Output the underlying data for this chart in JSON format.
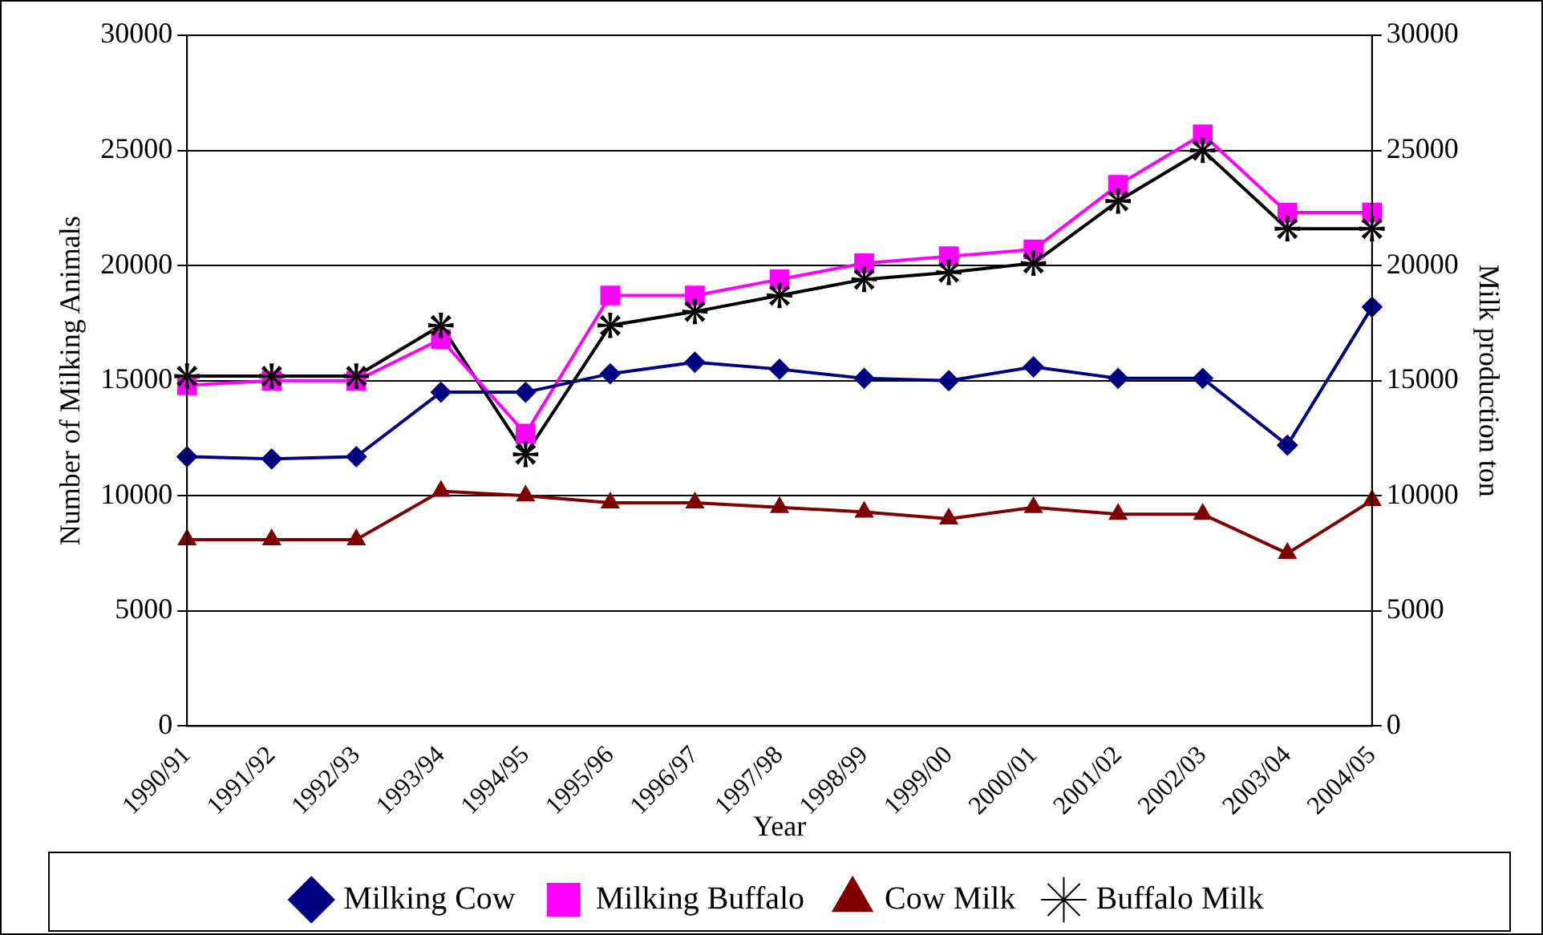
{
  "chart_data": {
    "type": "line",
    "xlabel": "Year",
    "ylabel": "Number of Milking Animals",
    "y2label": "Milk production ton",
    "categories": [
      "1990/91",
      "1991/92",
      "1992/93",
      "1993/94",
      "1994/95",
      "1995/96",
      "1996/97",
      "1997/98",
      "1998/99",
      "1999/00",
      "2000/01",
      "2001/02",
      "2002/03",
      "2003/04",
      "2004/05"
    ],
    "series": [
      {
        "name": "Milking Cow",
        "color": "#000080",
        "marker": "diamond",
        "values": [
          11700,
          11600,
          11700,
          14500,
          14500,
          15300,
          15800,
          15500,
          15100,
          15000,
          15600,
          15100,
          15100,
          12200,
          18200
        ]
      },
      {
        "name": "Milking Buffalo",
        "color": "#ff00ff",
        "marker": "square",
        "values": [
          14800,
          15000,
          15000,
          16800,
          12700,
          18700,
          18700,
          19400,
          20100,
          20400,
          20700,
          23500,
          25700,
          22300,
          22300
        ]
      },
      {
        "name": "Cow Milk",
        "color": "#800000",
        "marker": "triangle",
        "values": [
          8100,
          8100,
          8100,
          10200,
          10000,
          9700,
          9700,
          9500,
          9300,
          9000,
          9500,
          9200,
          9200,
          7500,
          9800
        ]
      },
      {
        "name": "Buffalo Milk",
        "color": "#000000",
        "marker": "star",
        "values": [
          15200,
          15200,
          15200,
          17400,
          11800,
          17400,
          18000,
          18700,
          19400,
          19700,
          20100,
          22800,
          25000,
          21600,
          21600
        ]
      }
    ],
    "ylim": [
      0,
      30000
    ],
    "yticks": [
      0,
      5000,
      10000,
      15000,
      20000,
      25000,
      30000
    ],
    "y2lim": [
      0,
      30000
    ],
    "y2ticks": [
      0,
      5000,
      10000,
      15000,
      20000,
      25000,
      30000
    ],
    "grid": "y",
    "legend": "bottom"
  }
}
